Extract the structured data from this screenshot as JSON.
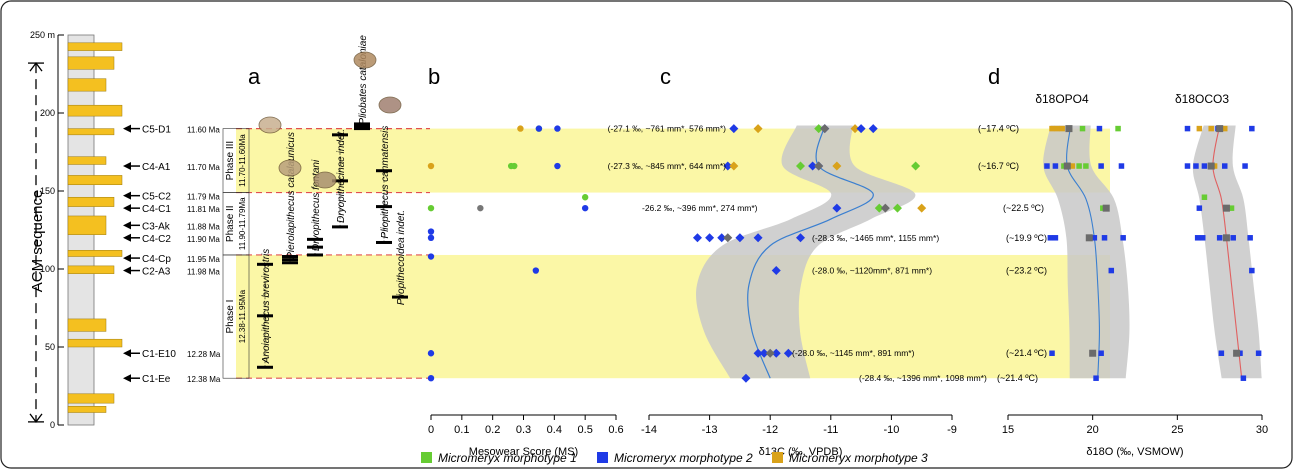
{
  "panel_letters": {
    "a": "a",
    "b": "b",
    "c": "c",
    "d": "d"
  },
  "strat": {
    "height_labels": [
      {
        "v": 0,
        "t": "0"
      },
      {
        "v": 50,
        "t": "50"
      },
      {
        "v": 100,
        "t": "100"
      },
      {
        "v": 150,
        "t": "150"
      },
      {
        "v": 200,
        "t": "200"
      },
      {
        "v": 250,
        "t": "250 m"
      }
    ],
    "axis_label": "ACM sequence"
  },
  "localities": [
    {
      "h": 190,
      "name": "C5-D1",
      "age": "11.60 Ma"
    },
    {
      "h": 166,
      "name": "C4-A1",
      "age": "11.70 Ma"
    },
    {
      "h": 147,
      "name": "C5-C2",
      "age": "11.79 Ma"
    },
    {
      "h": 139,
      "name": "C4-C1",
      "age": "11.81 Ma"
    },
    {
      "h": 128,
      "name": "C3-Ak",
      "age": "11.88 Ma"
    },
    {
      "h": 120,
      "name": "C4-C2",
      "age": "11.90 Ma"
    },
    {
      "h": 107,
      "name": "C4-Cp",
      "age": "11.95 Ma"
    },
    {
      "h": 99,
      "name": "C2-A3",
      "age": "11.98 Ma"
    },
    {
      "h": 46,
      "name": "C1-E10",
      "age": "12.28 Ma"
    },
    {
      "h": 30,
      "name": "C1-Ee",
      "age": "12.38 Ma"
    }
  ],
  "phases": [
    {
      "name": "Phase III",
      "range": "11.70-11.60Ma",
      "from": 149,
      "to": 190,
      "band": true
    },
    {
      "name": "Phase II",
      "range": "11.90-11.79Ma",
      "from": 109,
      "to": 149,
      "band": false
    },
    {
      "name": "Phase I",
      "range": "12.38-11.95Ma",
      "from": 30,
      "to": 109,
      "band": true
    }
  ],
  "taxa": [
    {
      "name": "Anoiapithecus brevirostris",
      "lo": 37,
      "hi": 103
    },
    {
      "name": "Pierolapithecus catalaunicus",
      "lo": 104,
      "hi": 108
    },
    {
      "name": "Dryopithecus fontani",
      "lo": 109,
      "hi": 119
    },
    {
      "name": "Dryopithecinae indet.",
      "lo": 127,
      "hi": 186
    },
    {
      "name": "Pliobates cataloniae",
      "lo": 190,
      "hi": 193
    },
    {
      "name": "Pliopithecus canmatensis",
      "lo": 117,
      "hi": 163
    },
    {
      "name": "Pliopithecoidea indet.",
      "lo": 82,
      "hi": 82
    }
  ],
  "legend": [
    {
      "label": "Micromeryx morphotype 1",
      "color": "#66cc33"
    },
    {
      "label": "Micromeryx morphotype 2",
      "color": "#1f3ae6"
    },
    {
      "label": "Micromeryx morphotype 3",
      "color": "#d9a21a"
    }
  ],
  "colors": {
    "band": "#fbf7a6",
    "dash": "#e05050",
    "curve_c": "#3a7fd0",
    "curve_o": "#e06060",
    "envelope": "#c8c8c8"
  },
  "chart_data": [
    {
      "type": "scatter",
      "panel": "b",
      "xlabel": "Mesowear Score (MS)",
      "xlim": [
        0,
        0.6
      ],
      "xticks": [
        "0",
        "0.1",
        "0.2",
        "0.3",
        "0.4",
        "0.5",
        "0.6"
      ],
      "points": [
        {
          "x": 0.29,
          "y": 190,
          "m": 3
        },
        {
          "x": 0.35,
          "y": 190,
          "m": 1
        },
        {
          "x": 0.35,
          "y": 190,
          "m": 2
        },
        {
          "x": 0.41,
          "y": 190,
          "m": 2
        },
        {
          "x": 0,
          "y": 166,
          "m": 3
        },
        {
          "x": 0.26,
          "y": 166,
          "m": 1
        },
        {
          "x": 0.27,
          "y": 166,
          "m": 1
        },
        {
          "x": 0.41,
          "y": 166,
          "m": 2
        },
        {
          "x": 0.5,
          "y": 146,
          "m": 1
        },
        {
          "x": 0,
          "y": 139,
          "m": 1
        },
        {
          "x": 0.16,
          "y": 139,
          "m": 1
        },
        {
          "x": 0.5,
          "y": 139,
          "m": 2
        },
        {
          "x": 0,
          "y": 124,
          "m": 2
        },
        {
          "x": 0,
          "y": 120,
          "m": 2
        },
        {
          "x": 0,
          "y": 108,
          "m": 2
        },
        {
          "x": 0.34,
          "y": 99,
          "m": 2
        },
        {
          "x": 0,
          "y": 46,
          "m": 2
        },
        {
          "x": 0,
          "y": 30,
          "m": 2
        }
      ]
    },
    {
      "type": "scatter",
      "panel": "c",
      "xlabel": "δ13C (‰, VPDB)",
      "xlim": [
        -14,
        -9
      ],
      "xticks": [
        "-14",
        "-13",
        "-12",
        "-11",
        "-10",
        "-9"
      ],
      "points": [
        {
          "x": -12.6,
          "y": 190,
          "m": 2
        },
        {
          "x": -12.2,
          "y": 190,
          "m": 3
        },
        {
          "x": -11.2,
          "y": 190,
          "m": 1
        },
        {
          "x": -11.1,
          "y": 190,
          "m": 2
        },
        {
          "x": -10.6,
          "y": 190,
          "m": 3
        },
        {
          "x": -10.5,
          "y": 190,
          "m": 2
        },
        {
          "x": -10.3,
          "y": 190,
          "m": 2
        },
        {
          "x": -12.7,
          "y": 166,
          "m": 2
        },
        {
          "x": -12.6,
          "y": 166,
          "m": 3
        },
        {
          "x": -11.5,
          "y": 166,
          "m": 1
        },
        {
          "x": -11.3,
          "y": 166,
          "m": 2
        },
        {
          "x": -11.2,
          "y": 166,
          "m": 2
        },
        {
          "x": -10.9,
          "y": 166,
          "m": 3
        },
        {
          "x": -9.6,
          "y": 166,
          "m": 1
        },
        {
          "x": -10.9,
          "y": 139,
          "m": 2
        },
        {
          "x": -10.2,
          "y": 139,
          "m": 1
        },
        {
          "x": -9.9,
          "y": 139,
          "m": 1
        },
        {
          "x": -9.5,
          "y": 139,
          "m": 3
        },
        {
          "x": -13.2,
          "y": 120,
          "m": 2
        },
        {
          "x": -13.0,
          "y": 120,
          "m": 2
        },
        {
          "x": -12.8,
          "y": 120,
          "m": 2
        },
        {
          "x": -12.5,
          "y": 120,
          "m": 2
        },
        {
          "x": -12.2,
          "y": 120,
          "m": 2
        },
        {
          "x": -11.5,
          "y": 120,
          "m": 2
        },
        {
          "x": -11.9,
          "y": 99,
          "m": 2
        },
        {
          "x": -12.2,
          "y": 46,
          "m": 2
        },
        {
          "x": -12.1,
          "y": 46,
          "m": 2
        },
        {
          "x": -11.9,
          "y": 46,
          "m": 2
        },
        {
          "x": -11.7,
          "y": 46,
          "m": 2
        },
        {
          "x": -12.4,
          "y": 30,
          "m": 2
        }
      ],
      "means": [
        {
          "x": -11.1,
          "y": 190
        },
        {
          "x": -11.2,
          "y": 166
        },
        {
          "x": -10.1,
          "y": 139
        },
        {
          "x": -12.7,
          "y": 120
        },
        {
          "x": -12.0,
          "y": 46
        }
      ],
      "curve": [
        {
          "x": -11.1,
          "y": 192
        },
        {
          "x": -11.2,
          "y": 166
        },
        {
          "x": -10.3,
          "y": 148
        },
        {
          "x": -11.0,
          "y": 132
        },
        {
          "x": -12.0,
          "y": 115
        },
        {
          "x": -12.35,
          "y": 90
        },
        {
          "x": -12.3,
          "y": 60
        },
        {
          "x": -12.0,
          "y": 30
        }
      ],
      "annotations": [
        {
          "y": 190,
          "t": "(-27.1 ‰, ~761 mm*, 576 mm*)"
        },
        {
          "y": 166,
          "t": "(-27.3 ‰, ~845 mm*, 644 mm*)"
        },
        {
          "y": 139,
          "t": "-26.2 ‰, ~396 mm*, 274 mm*)"
        },
        {
          "y": 120,
          "t": "(-28.3 ‰, ~1465 mm*, 1155 mm*)"
        },
        {
          "y": 99,
          "t": "(-28.0 ‰, ~1120mm*, 871 mm*)"
        },
        {
          "y": 46,
          "t": "(-28.0 ‰, ~1145 mm*, 891 mm*)"
        },
        {
          "y": 30,
          "t": "(-28.4 ‰, ~1396 mm*, 1098 mm*)"
        }
      ]
    },
    {
      "type": "scatter",
      "panel": "d",
      "xlabel": "δ18O (‰, VSMOW)",
      "xlim": [
        15,
        30
      ],
      "xticks": [
        "15",
        "20",
        "25",
        "30"
      ],
      "series_titles": [
        "δ18OPO4",
        "δ18OCO3"
      ],
      "temps": [
        {
          "y": 190,
          "t": "(~17.4 ºC)"
        },
        {
          "y": 166,
          "t": "(~16.7 ºC)"
        },
        {
          "y": 139,
          "t": "(~22.5 ºC)"
        },
        {
          "y": 120,
          "t": "(~19.9 ºC)"
        },
        {
          "y": 99,
          "t": "(~23.2 ºC)"
        },
        {
          "y": 46,
          "t": "(~21.4 ºC)"
        },
        {
          "y": 30,
          "t": "(~21.4 ºC)"
        }
      ],
      "po4_points": [
        {
          "x": 17.6,
          "y": 190,
          "m": 3
        },
        {
          "x": 17.9,
          "y": 190,
          "m": 3
        },
        {
          "x": 18.2,
          "y": 190,
          "m": 3
        },
        {
          "x": 18.6,
          "y": 190,
          "m": 2
        },
        {
          "x": 19.4,
          "y": 190,
          "m": 1
        },
        {
          "x": 20.4,
          "y": 190,
          "m": 2
        },
        {
          "x": 21.5,
          "y": 190,
          "m": 1
        },
        {
          "x": 17.3,
          "y": 166,
          "m": 2
        },
        {
          "x": 17.8,
          "y": 166,
          "m": 2
        },
        {
          "x": 18.3,
          "y": 166,
          "m": 1
        },
        {
          "x": 18.8,
          "y": 166,
          "m": 3
        },
        {
          "x": 19.2,
          "y": 166,
          "m": 1
        },
        {
          "x": 19.6,
          "y": 166,
          "m": 1
        },
        {
          "x": 20.5,
          "y": 166,
          "m": 2
        },
        {
          "x": 21.7,
          "y": 166,
          "m": 2
        },
        {
          "x": 20.6,
          "y": 139,
          "m": 1
        },
        {
          "x": 17.5,
          "y": 120,
          "m": 2
        },
        {
          "x": 17.8,
          "y": 120,
          "m": 2
        },
        {
          "x": 20.1,
          "y": 120,
          "m": 2
        },
        {
          "x": 20.7,
          "y": 120,
          "m": 2
        },
        {
          "x": 21.8,
          "y": 120,
          "m": 2
        },
        {
          "x": 21.1,
          "y": 99,
          "m": 2
        },
        {
          "x": 17.6,
          "y": 46,
          "m": 2
        },
        {
          "x": 20.5,
          "y": 46,
          "m": 2
        },
        {
          "x": 20.2,
          "y": 30,
          "m": 2
        }
      ],
      "po4_means": [
        {
          "x": 18.6,
          "y": 190
        },
        {
          "x": 18.5,
          "y": 166
        },
        {
          "x": 20.8,
          "y": 139
        },
        {
          "x": 19.8,
          "y": 120
        },
        {
          "x": 20.0,
          "y": 46
        }
      ],
      "po4_curve": [
        {
          "x": 18.7,
          "y": 192
        },
        {
          "x": 18.5,
          "y": 166
        },
        {
          "x": 19.6,
          "y": 145
        },
        {
          "x": 20.1,
          "y": 120
        },
        {
          "x": 20.3,
          "y": 90
        },
        {
          "x": 20.4,
          "y": 60
        },
        {
          "x": 20.3,
          "y": 30
        }
      ],
      "co3_points": [
        {
          "x": 25.6,
          "y": 190,
          "m": 2
        },
        {
          "x": 26.3,
          "y": 190,
          "m": 3
        },
        {
          "x": 27.0,
          "y": 190,
          "m": 3
        },
        {
          "x": 27.4,
          "y": 190,
          "m": 2
        },
        {
          "x": 27.8,
          "y": 190,
          "m": 3
        },
        {
          "x": 29.4,
          "y": 190,
          "m": 2
        },
        {
          "x": 25.6,
          "y": 166,
          "m": 2
        },
        {
          "x": 26.1,
          "y": 166,
          "m": 2
        },
        {
          "x": 26.6,
          "y": 166,
          "m": 2
        },
        {
          "x": 27.2,
          "y": 166,
          "m": 3
        },
        {
          "x": 27.8,
          "y": 166,
          "m": 2
        },
        {
          "x": 29.0,
          "y": 166,
          "m": 2
        },
        {
          "x": 26.6,
          "y": 146,
          "m": 1
        },
        {
          "x": 26.3,
          "y": 139,
          "m": 2
        },
        {
          "x": 28.2,
          "y": 139,
          "m": 1
        },
        {
          "x": 26.2,
          "y": 120,
          "m": 2
        },
        {
          "x": 26.5,
          "y": 120,
          "m": 2
        },
        {
          "x": 27.5,
          "y": 120,
          "m": 2
        },
        {
          "x": 28.3,
          "y": 120,
          "m": 2
        },
        {
          "x": 29.3,
          "y": 120,
          "m": 2
        },
        {
          "x": 29.4,
          "y": 99,
          "m": 2
        },
        {
          "x": 27.6,
          "y": 46,
          "m": 2
        },
        {
          "x": 28.7,
          "y": 46,
          "m": 2
        },
        {
          "x": 29.8,
          "y": 46,
          "m": 2
        },
        {
          "x": 28.9,
          "y": 30,
          "m": 2
        }
      ],
      "co3_means": [
        {
          "x": 27.5,
          "y": 190
        },
        {
          "x": 27.0,
          "y": 166
        },
        {
          "x": 27.9,
          "y": 139
        },
        {
          "x": 27.9,
          "y": 120
        },
        {
          "x": 28.5,
          "y": 46
        }
      ],
      "co3_curve": [
        {
          "x": 27.5,
          "y": 192
        },
        {
          "x": 27.1,
          "y": 166
        },
        {
          "x": 27.6,
          "y": 145
        },
        {
          "x": 27.9,
          "y": 120
        },
        {
          "x": 28.2,
          "y": 90
        },
        {
          "x": 28.5,
          "y": 60
        },
        {
          "x": 28.8,
          "y": 30
        }
      ]
    }
  ]
}
